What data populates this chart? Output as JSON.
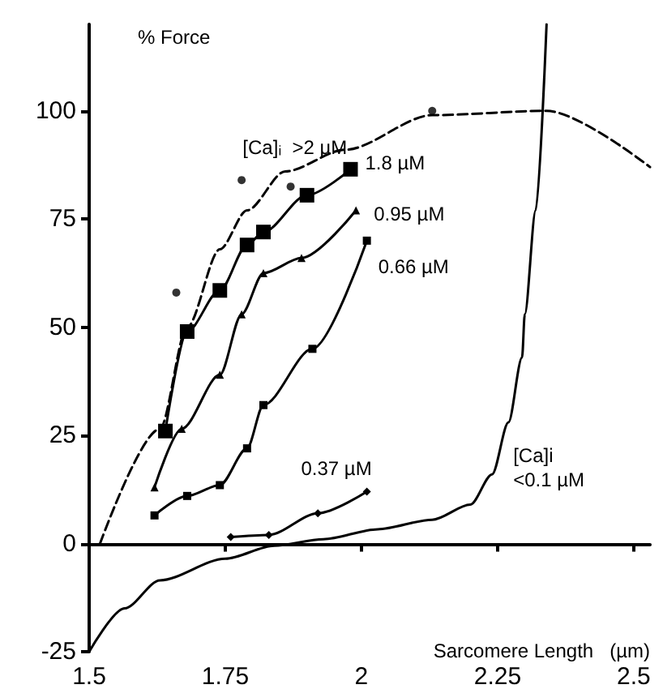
{
  "chart_data": {
    "type": "line",
    "xlabel": "Sarcomere Length   (µm)",
    "ylabel": "% Force",
    "xlim": [
      1.5,
      2.53
    ],
    "xticks": [
      1.5,
      1.75,
      2,
      2.25,
      2.5
    ],
    "ylim": [
      -25,
      120
    ],
    "yticks": [
      -25,
      0,
      25,
      50,
      75,
      100
    ],
    "legend": false,
    "series": [
      {
        "name": "[Ca]ᵢ  >2 µM",
        "color": "#000000",
        "line_style": "dashed",
        "marker": "none",
        "x": [
          1.52,
          1.63,
          1.68,
          1.74,
          1.79,
          1.86,
          1.97,
          2.13,
          2.34,
          2.53
        ],
        "values": [
          0,
          26.5,
          50,
          68,
          77,
          86,
          91,
          99,
          100,
          87
        ]
      },
      {
        "type": "scatter",
        "color": "#000000",
        "marker": "circle",
        "x": [
          1.66,
          1.78,
          1.87,
          2.13
        ],
        "values": [
          58,
          84,
          82.5,
          100
        ]
      },
      {
        "name": "1.8 µM",
        "color": "#000000",
        "line_style": "solid",
        "marker": "square",
        "x": [
          1.64,
          1.68,
          1.74,
          1.79,
          1.82,
          1.9,
          1.98
        ],
        "values": [
          26,
          49,
          58.5,
          69,
          72,
          80.5,
          86.5
        ]
      },
      {
        "name": "0.95 µM",
        "color": "#000000",
        "line_style": "solid",
        "marker": "triangle",
        "x": [
          1.62,
          1.67,
          1.74,
          1.78,
          1.82,
          1.89,
          1.99
        ],
        "values": [
          13,
          26.5,
          39,
          53,
          62.5,
          66,
          77
        ]
      },
      {
        "name": "0.66 µM",
        "color": "#000000",
        "line_style": "solid",
        "marker": "square",
        "x": [
          1.62,
          1.68,
          1.74,
          1.79,
          1.82,
          1.91,
          2.01
        ],
        "values": [
          6.5,
          11,
          13.5,
          22,
          32,
          45,
          70
        ]
      },
      {
        "name": "0.37 µM",
        "color": "#000000",
        "line_style": "solid",
        "marker": "diamond",
        "x": [
          1.76,
          1.83,
          1.92,
          2.01
        ],
        "values": [
          1.5,
          2,
          7,
          12
        ]
      },
      {
        "name": "[Ca]i\n<0.1 µM",
        "color": "#000000",
        "line_style": "solid",
        "marker": "none",
        "x": [
          1.5,
          1.565,
          1.63,
          1.75,
          1.84,
          1.93,
          2.03,
          2.13,
          2.2,
          2.24,
          2.27,
          2.295,
          2.3,
          2.32,
          2.34
        ],
        "values": [
          -25,
          -15,
          -8.5,
          -3.5,
          -0.5,
          1,
          3.3,
          5.5,
          9,
          16,
          28,
          43,
          53,
          77,
          120
        ]
      }
    ]
  }
}
